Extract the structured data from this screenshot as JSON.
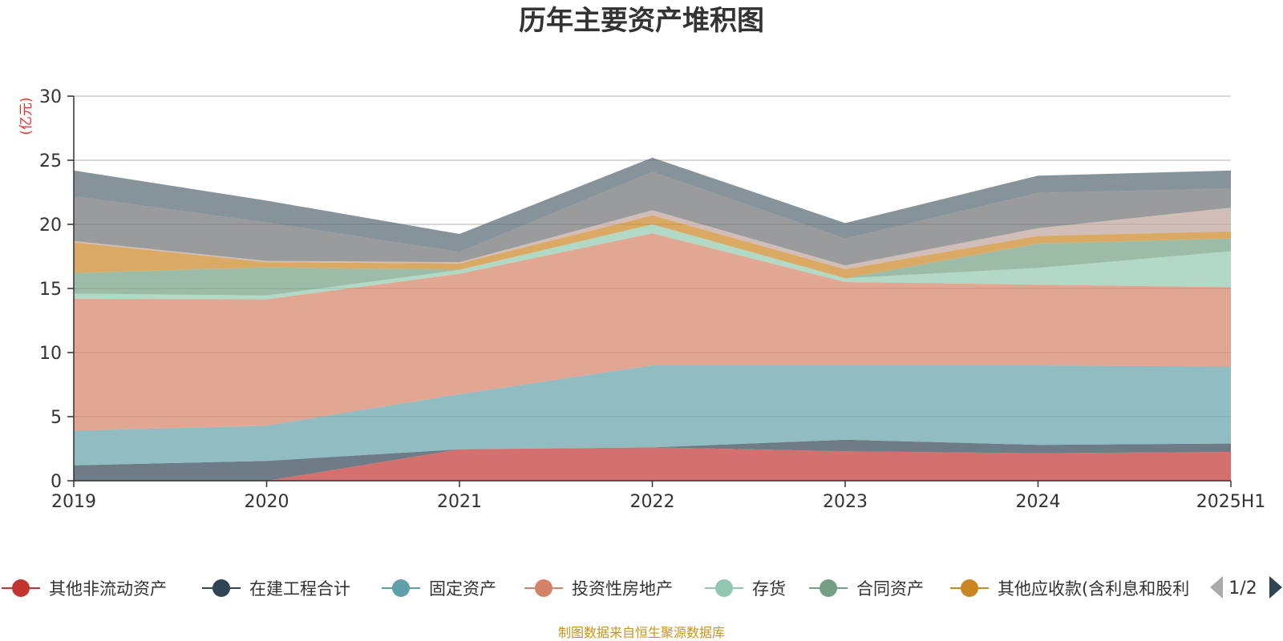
{
  "chart_data": {
    "type": "area",
    "stacked": true,
    "title": "历年主要资产堆积图",
    "unit_label": "(亿元)",
    "source_note": "制图数据来自恒生聚源数据库",
    "x": [
      "2019",
      "2020",
      "2021",
      "2022",
      "2023",
      "2024",
      "2025H1"
    ],
    "ylim": [
      0,
      30
    ],
    "yticks": [
      0,
      5,
      10,
      15,
      20,
      25,
      30
    ],
    "grid": true,
    "legend_position": "bottom",
    "legend_page": "1/2",
    "series": [
      {
        "name": "其他非流动资产",
        "color": "#c23531",
        "values": [
          0,
          0,
          2.45,
          2.6,
          2.3,
          2.15,
          2.25
        ]
      },
      {
        "name": "在建工程合计",
        "color": "#2f4554",
        "values": [
          1.2,
          1.55,
          0,
          0,
          0.9,
          0.65,
          0.65
        ]
      },
      {
        "name": "固定资产",
        "color": "#61a0a8",
        "values": [
          2.7,
          2.75,
          4.3,
          6.4,
          5.8,
          6.2,
          6.0
        ]
      },
      {
        "name": "投资性房地产",
        "color": "#d48265",
        "values": [
          10.3,
          9.85,
          9.4,
          10.3,
          6.5,
          6.3,
          6.2
        ]
      },
      {
        "name": "存货",
        "color": "#91c7ae",
        "values": [
          0.4,
          0.3,
          0.3,
          0.7,
          0.3,
          1.3,
          2.8
        ]
      },
      {
        "name": "合同资产",
        "color": "#749f83",
        "values": [
          1.6,
          2.2,
          0,
          0,
          0,
          1.9,
          1.0
        ]
      },
      {
        "name": "其他应收款(含利息和股利)",
        "color": "#ca8622",
        "values": [
          2.4,
          0.4,
          0.5,
          0.7,
          0.7,
          0.6,
          0.55
        ]
      },
      {
        "name": "",
        "color": "#bda29a",
        "values": [
          0.1,
          0.1,
          0.1,
          0.4,
          0.3,
          0.6,
          1.85
        ]
      },
      {
        "name": "",
        "color": "#6e7074",
        "values": [
          3.5,
          3.0,
          0.8,
          3.0,
          2.1,
          2.75,
          1.5
        ]
      },
      {
        "name": "",
        "color": "#546570",
        "values": [
          2.0,
          1.7,
          1.4,
          1.1,
          1.2,
          1.35,
          1.4
        ]
      }
    ]
  }
}
